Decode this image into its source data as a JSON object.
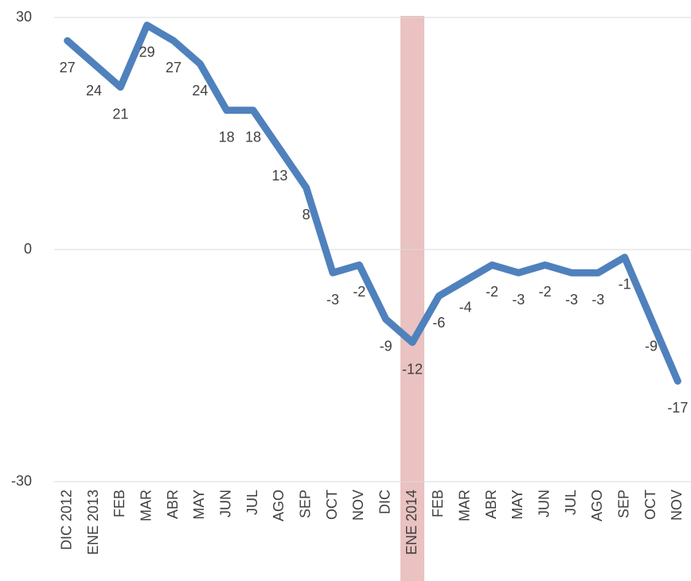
{
  "chart_data": {
    "type": "line",
    "categories": [
      "DIC 2012",
      "ENE 2013",
      "FEB",
      "MAR",
      "ABR",
      "MAY",
      "JUN",
      "JUL",
      "AGO",
      "SEP",
      "OCT",
      "NOV",
      "DIC",
      "ENE 2014",
      "FEB",
      "MAR",
      "ABR",
      "MAY",
      "JUN",
      "JUL",
      "AGO",
      "SEP",
      "OCT",
      "NOV"
    ],
    "series": [
      {
        "color": "#4f81bd",
        "values": [
          27,
          24,
          21,
          29,
          27,
          24,
          18,
          18,
          13,
          8,
          -3,
          -2,
          -9,
          -12,
          -6,
          -4,
          -2,
          -3,
          -2,
          -3,
          -3,
          -1,
          -9,
          -17
        ]
      }
    ],
    "ylim": [
      -30,
      30
    ],
    "yticks": [
      -30,
      0,
      30
    ],
    "grid": true,
    "highlight_category": "ENE 2014",
    "highlight_color": "#c0504d"
  }
}
